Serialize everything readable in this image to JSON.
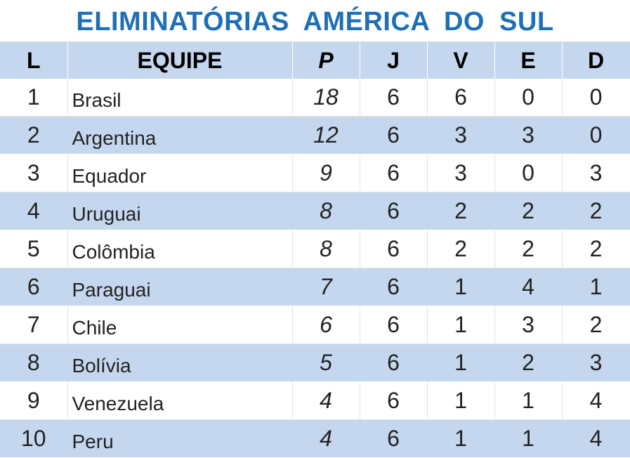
{
  "title": "ELIMINATÓRIAS  AMÉRICA  DO  SUL",
  "headers": {
    "pos": "L",
    "team": "EQUIPE",
    "points": "P",
    "played": "J",
    "wins": "V",
    "draws": "E",
    "losses": "D"
  },
  "rows": [
    {
      "pos": "1",
      "team": "Brasil",
      "points": "18",
      "played": "6",
      "wins": "6",
      "draws": "0",
      "losses": "0"
    },
    {
      "pos": "2",
      "team": "Argentina",
      "points": "12",
      "played": "6",
      "wins": "3",
      "draws": "3",
      "losses": "0"
    },
    {
      "pos": "3",
      "team": "Equador",
      "points": "9",
      "played": "6",
      "wins": "3",
      "draws": "0",
      "losses": "3"
    },
    {
      "pos": "4",
      "team": "Uruguai",
      "points": "8",
      "played": "6",
      "wins": "2",
      "draws": "2",
      "losses": "2"
    },
    {
      "pos": "5",
      "team": "Colômbia",
      "points": "8",
      "played": "6",
      "wins": "2",
      "draws": "2",
      "losses": "2"
    },
    {
      "pos": "6",
      "team": "Paraguai",
      "points": "7",
      "played": "6",
      "wins": "1",
      "draws": "4",
      "losses": "1"
    },
    {
      "pos": "7",
      "team": "Chile",
      "points": "6",
      "played": "6",
      "wins": "1",
      "draws": "3",
      "losses": "2"
    },
    {
      "pos": "8",
      "team": "Bolívia",
      "points": "5",
      "played": "6",
      "wins": "1",
      "draws": "2",
      "losses": "3"
    },
    {
      "pos": "9",
      "team": "Venezuela",
      "points": "4",
      "played": "6",
      "wins": "1",
      "draws": "1",
      "losses": "4"
    },
    {
      "pos": "10",
      "team": "Peru",
      "points": "4",
      "played": "6",
      "wins": "1",
      "draws": "1",
      "losses": "4"
    }
  ],
  "colors": {
    "title": "#1f6fb5",
    "band": "#c5d7ee"
  }
}
